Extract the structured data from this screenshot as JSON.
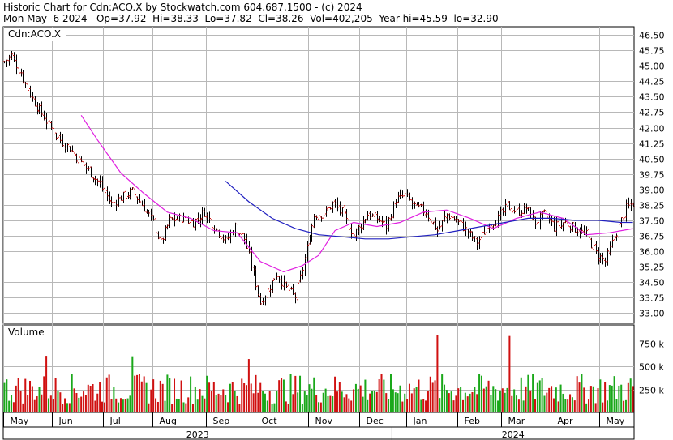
{
  "header": {
    "line1": "Historic Chart for Cdn:ACO.X by Stockwatch.com 604.687.1500 - (c) 2024",
    "line2": "Mon May  6 2024   Op=37.92  Hi=38.33  Lo=37.82  Cl=38.26  Vol=402,205  Year hi=45.59  lo=32.90"
  },
  "colors": {
    "up": "#1aa81a",
    "down": "#d01010",
    "candle": "#000000",
    "ma_short": "#e020e0",
    "ma_long": "#2020c0",
    "grid": "#b8b8b8"
  },
  "chart_data": {
    "type": "bar",
    "price_panel": {
      "label": "Cdn:ACO.X",
      "ylim": [
        32.5,
        46.9
      ],
      "y_ticks": [
        "46.50",
        "45.75",
        "45.00",
        "44.25",
        "43.50",
        "42.75",
        "42.00",
        "41.25",
        "40.50",
        "39.75",
        "39.00",
        "38.25",
        "37.50",
        "36.75",
        "36.00",
        "35.25",
        "34.50",
        "33.75",
        "33.00"
      ],
      "close_anchors": [
        [
          0,
          45.2
        ],
        [
          3,
          45.5
        ],
        [
          7,
          44.6
        ],
        [
          12,
          43.4
        ],
        [
          17,
          42.5
        ],
        [
          22,
          41.6
        ],
        [
          27,
          41.1
        ],
        [
          33,
          40.3
        ],
        [
          40,
          39.4
        ],
        [
          46,
          38.3
        ],
        [
          50,
          38.6
        ],
        [
          55,
          38.9
        ],
        [
          60,
          38.1
        ],
        [
          64,
          37.4
        ],
        [
          67,
          36.4
        ],
        [
          71,
          37.5
        ],
        [
          76,
          37.6
        ],
        [
          81,
          37.4
        ],
        [
          86,
          37.9
        ],
        [
          90,
          37.2
        ],
        [
          95,
          36.5
        ],
        [
          99,
          37.2
        ],
        [
          103,
          36.6
        ],
        [
          107,
          34.9
        ],
        [
          110,
          33.5
        ],
        [
          114,
          34.3
        ],
        [
          117,
          34.9
        ],
        [
          121,
          34.2
        ],
        [
          125,
          33.8
        ],
        [
          129,
          35.6
        ],
        [
          133,
          37.8
        ],
        [
          137,
          37.8
        ],
        [
          141,
          38.3
        ],
        [
          145,
          37.9
        ],
        [
          150,
          36.8
        ],
        [
          156,
          37.8
        ],
        [
          160,
          37.6
        ],
        [
          164,
          37.2
        ],
        [
          168,
          38.5
        ],
        [
          172,
          38.7
        ],
        [
          176,
          38.2
        ],
        [
          181,
          37.9
        ],
        [
          186,
          37.0
        ],
        [
          190,
          37.8
        ],
        [
          196,
          37.3
        ],
        [
          203,
          36.4
        ],
        [
          208,
          37.3
        ],
        [
          212,
          37.6
        ],
        [
          216,
          38.2
        ],
        [
          220,
          37.9
        ],
        [
          224,
          38.1
        ],
        [
          228,
          37.4
        ],
        [
          232,
          37.8
        ],
        [
          236,
          37.2
        ],
        [
          241,
          37.4
        ],
        [
          245,
          37.1
        ],
        [
          250,
          36.8
        ],
        [
          254,
          35.9
        ],
        [
          258,
          35.5
        ],
        [
          261,
          36.4
        ],
        [
          264,
          37.2
        ],
        [
          267,
          38.1
        ],
        [
          270,
          38.3
        ]
      ],
      "ma_short": [
        [
          33,
          42.6
        ],
        [
          40,
          41.4
        ],
        [
          50,
          39.8
        ],
        [
          60,
          38.8
        ],
        [
          70,
          37.9
        ],
        [
          80,
          37.6
        ],
        [
          90,
          37.0
        ],
        [
          100,
          36.9
        ],
        [
          110,
          35.5
        ],
        [
          120,
          35.0
        ],
        [
          128,
          35.3
        ],
        [
          135,
          35.8
        ],
        [
          142,
          37.0
        ],
        [
          150,
          37.4
        ],
        [
          160,
          37.2
        ],
        [
          170,
          37.4
        ],
        [
          180,
          37.9
        ],
        [
          190,
          38.0
        ],
        [
          200,
          37.6
        ],
        [
          210,
          37.1
        ],
        [
          220,
          37.6
        ],
        [
          230,
          37.9
        ],
        [
          240,
          37.6
        ],
        [
          250,
          36.8
        ],
        [
          260,
          36.9
        ],
        [
          270,
          37.1
        ]
      ],
      "ma_long": [
        [
          95,
          39.4
        ],
        [
          105,
          38.4
        ],
        [
          115,
          37.6
        ],
        [
          125,
          37.1
        ],
        [
          135,
          36.8
        ],
        [
          145,
          36.7
        ],
        [
          155,
          36.6
        ],
        [
          165,
          36.6
        ],
        [
          175,
          36.7
        ],
        [
          185,
          36.8
        ],
        [
          195,
          37.0
        ],
        [
          205,
          37.2
        ],
        [
          215,
          37.4
        ],
        [
          225,
          37.6
        ],
        [
          235,
          37.6
        ],
        [
          245,
          37.5
        ],
        [
          255,
          37.5
        ],
        [
          265,
          37.4
        ],
        [
          270,
          37.4
        ]
      ]
    },
    "volume_panel": {
      "label": "Volume",
      "ylim": [
        0,
        950
      ],
      "y_ticks": [
        "750 k",
        "500 k",
        "250 k"
      ],
      "tick_values": [
        750,
        500,
        250
      ],
      "spikes": [
        [
          18,
          615
        ],
        [
          55,
          610
        ],
        [
          105,
          580
        ],
        [
          186,
          840
        ],
        [
          217,
          830
        ]
      ]
    },
    "x_axis": {
      "month_labels": [
        "May",
        "Jun",
        "Jul",
        "Aug",
        "Sep",
        "Oct",
        "Nov",
        "Dec",
        "Jan",
        "Feb",
        "Mar",
        "Apr",
        "May"
      ],
      "month_starts": [
        0,
        21,
        43,
        64,
        87,
        108,
        131,
        153,
        173,
        195,
        214,
        235,
        256
      ],
      "year_labels": [
        {
          "text": "2023",
          "start": 0,
          "end": 167
        },
        {
          "text": "2024",
          "start": 167,
          "end": 271
        }
      ]
    },
    "n_bars": 271
  }
}
